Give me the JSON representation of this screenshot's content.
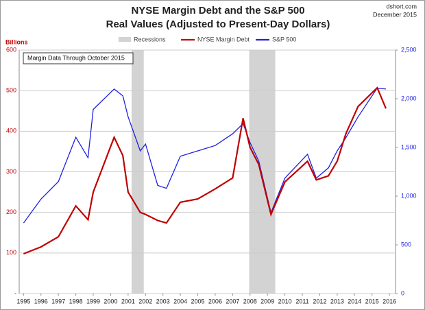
{
  "chart_data": {
    "type": "line",
    "title": "NYSE Margin Debt and the S&P 500",
    "subtitle": "Real Values (Adjusted to Present-Day Dollars)",
    "source": "dshort.com",
    "date": "December 2015",
    "ylabel": "Billions",
    "annotation": "Margin Data Through October 2015",
    "recessions_label": "Recessions",
    "recessions_color": "#d3d3d3",
    "recessions": [
      [
        2001.2,
        2001.9
      ],
      [
        2007.95,
        2009.45
      ]
    ],
    "x": [
      1995,
      1996,
      1997,
      1998,
      1998.7,
      1999,
      2000.2,
      2000.7,
      2001,
      2001.7,
      2002,
      2002.7,
      2003.2,
      2004,
      2005,
      2006,
      2007,
      2007.6,
      2008,
      2008.5,
      2009.2,
      2010,
      2011.3,
      2011.8,
      2012.5,
      2013,
      2013.5,
      2014.2,
      2015.3,
      2015.8
    ],
    "series": [
      {
        "name": "NYSE Margin Debt",
        "color": "#c00000",
        "values": [
          98,
          115,
          140,
          216,
          182,
          250,
          385,
          340,
          250,
          200,
          195,
          180,
          174,
          225,
          233,
          258,
          285,
          432,
          360,
          318,
          195,
          275,
          326,
          280,
          290,
          326,
          394,
          461,
          507,
          456
        ]
      },
      {
        "name": "S&P 500",
        "color": "#1f1fe0",
        "axis": "y2",
        "values": [
          725,
          970,
          1150,
          1605,
          1395,
          1890,
          2100,
          2030,
          1815,
          1465,
          1535,
          1110,
          1080,
          1410,
          1465,
          1520,
          1640,
          1745,
          1550,
          1360,
          830,
          1185,
          1430,
          1185,
          1290,
          1465,
          1600,
          1815,
          2110,
          2100
        ]
      }
    ],
    "xlim": [
      1994.75,
      2016.35
    ],
    "xticks": [
      1995,
      1996,
      1997,
      1998,
      1999,
      2000,
      2001,
      2002,
      2003,
      2004,
      2005,
      2006,
      2007,
      2008,
      2009,
      2010,
      2011,
      2012,
      2013,
      2014,
      2015,
      2016
    ],
    "ylim": [
      0,
      600
    ],
    "yticks": [
      {
        "value": 0,
        "label": "-"
      },
      100,
      200,
      300,
      400,
      500,
      600
    ],
    "y2lim": [
      0,
      2500
    ],
    "y2ticks": [
      0,
      500,
      {
        "value": 1000,
        "label": "1,000"
      },
      {
        "value": 1500,
        "label": "1,500"
      },
      {
        "value": 2000,
        "label": "2,000"
      },
      {
        "value": 2500,
        "label": "2,500"
      }
    ],
    "grid": true
  }
}
